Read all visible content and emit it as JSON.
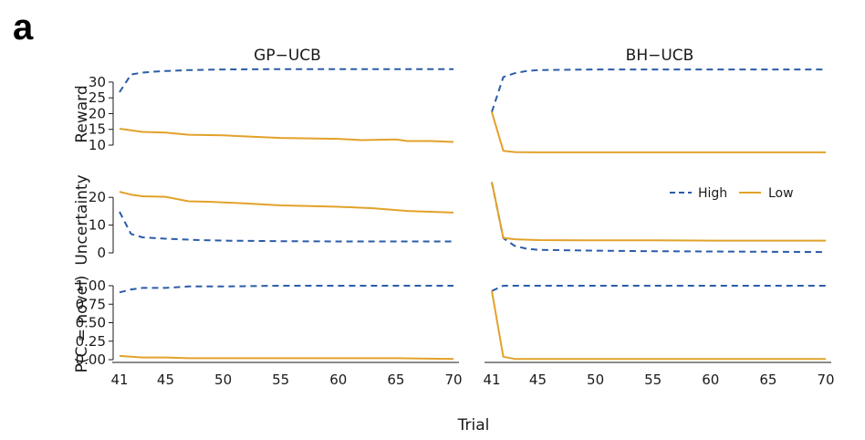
{
  "figure": {
    "panel_letter": "a",
    "xlabel": "Trial"
  },
  "colors": {
    "High": "#2b5ca8",
    "Low": "#e2a22b"
  },
  "chart_data": {
    "type": "line",
    "title": "",
    "x_ticks": [
      41,
      45,
      50,
      55,
      60,
      65,
      70
    ],
    "xlim": [
      41,
      70
    ],
    "columns": [
      "GP−UCB",
      "BH−UCB"
    ],
    "legend": {
      "entries": [
        "High",
        "Low"
      ],
      "placement": "right, in Uncertainty row of BH−UCB panel"
    },
    "rows": [
      {
        "key": "reward",
        "ylabel": "Reward",
        "ylim": [
          10,
          32
        ],
        "yticks": [
          10,
          15,
          20,
          25,
          30
        ],
        "ytick_labels": [
          "10",
          "15",
          "20",
          "25",
          "30"
        ],
        "panels": [
          {
            "column": "GP−UCB",
            "series": [
              {
                "name": "High",
                "style": "dashed",
                "points": [
                  [
                    41,
                    26.8
                  ],
                  [
                    42,
                    32.4
                  ],
                  [
                    43,
                    33.0
                  ],
                  [
                    44,
                    33.3
                  ],
                  [
                    45,
                    33.5
                  ],
                  [
                    47,
                    33.8
                  ],
                  [
                    50,
                    34.0
                  ],
                  [
                    55,
                    34.1
                  ],
                  [
                    60,
                    34.1
                  ],
                  [
                    65,
                    34.1
                  ],
                  [
                    70,
                    34.1
                  ]
                ]
              },
              {
                "name": "Low",
                "style": "solid",
                "points": [
                  [
                    41,
                    15.2
                  ],
                  [
                    43,
                    14.2
                  ],
                  [
                    45,
                    14.0
                  ],
                  [
                    47,
                    13.3
                  ],
                  [
                    50,
                    13.1
                  ],
                  [
                    55,
                    12.3
                  ],
                  [
                    60,
                    12.0
                  ],
                  [
                    62,
                    11.6
                  ],
                  [
                    65,
                    11.8
                  ],
                  [
                    66,
                    11.3
                  ],
                  [
                    68,
                    11.3
                  ],
                  [
                    70,
                    11.0
                  ]
                ]
              }
            ]
          },
          {
            "column": "BH−UCB",
            "series": [
              {
                "name": "High",
                "style": "dashed",
                "points": [
                  [
                    41,
                    20.5
                  ],
                  [
                    42,
                    31.6
                  ],
                  [
                    43,
                    32.8
                  ],
                  [
                    44,
                    33.5
                  ],
                  [
                    45,
                    33.8
                  ],
                  [
                    50,
                    34.0
                  ],
                  [
                    55,
                    34.0
                  ],
                  [
                    60,
                    34.0
                  ],
                  [
                    65,
                    34.0
                  ],
                  [
                    70,
                    34.0
                  ]
                ]
              },
              {
                "name": "Low",
                "style": "solid",
                "points": [
                  [
                    41,
                    20.5
                  ],
                  [
                    42,
                    8.2
                  ],
                  [
                    43,
                    7.8
                  ],
                  [
                    45,
                    7.7
                  ],
                  [
                    50,
                    7.7
                  ],
                  [
                    55,
                    7.7
                  ],
                  [
                    60,
                    7.7
                  ],
                  [
                    65,
                    7.7
                  ],
                  [
                    70,
                    7.7
                  ]
                ]
              }
            ]
          }
        ]
      },
      {
        "key": "uncertainty",
        "ylabel": "Uncertainty",
        "ylim": [
          0,
          25
        ],
        "yticks": [
          0,
          10,
          20
        ],
        "ytick_labels": [
          "0",
          "10",
          "20"
        ],
        "panels": [
          {
            "column": "GP−UCB",
            "series": [
              {
                "name": "High",
                "style": "dashed",
                "points": [
                  [
                    41,
                    14.8
                  ],
                  [
                    42,
                    6.8
                  ],
                  [
                    43,
                    5.6
                  ],
                  [
                    45,
                    5.1
                  ],
                  [
                    48,
                    4.6
                  ],
                  [
                    50,
                    4.4
                  ],
                  [
                    55,
                    4.2
                  ],
                  [
                    60,
                    4.1
                  ],
                  [
                    65,
                    4.1
                  ],
                  [
                    70,
                    4.1
                  ]
                ]
              },
              {
                "name": "Low",
                "style": "solid",
                "points": [
                  [
                    41,
                    22.0
                  ],
                  [
                    42,
                    21.0
                  ],
                  [
                    43,
                    20.4
                  ],
                  [
                    45,
                    20.2
                  ],
                  [
                    47,
                    18.6
                  ],
                  [
                    49,
                    18.4
                  ],
                  [
                    52,
                    17.8
                  ],
                  [
                    55,
                    17.1
                  ],
                  [
                    58,
                    16.8
                  ],
                  [
                    60,
                    16.6
                  ],
                  [
                    63,
                    16.1
                  ],
                  [
                    66,
                    15.1
                  ],
                  [
                    68,
                    14.8
                  ],
                  [
                    70,
                    14.5
                  ]
                ]
              }
            ]
          },
          {
            "column": "BH−UCB",
            "series": [
              {
                "name": "High",
                "style": "dashed",
                "points": [
                  [
                    41,
                    25.5
                  ],
                  [
                    42,
                    5.3
                  ],
                  [
                    43,
                    2.5
                  ],
                  [
                    44,
                    1.5
                  ],
                  [
                    45,
                    1.1
                  ],
                  [
                    50,
                    0.8
                  ],
                  [
                    55,
                    0.6
                  ],
                  [
                    60,
                    0.5
                  ],
                  [
                    65,
                    0.4
                  ],
                  [
                    70,
                    0.3
                  ]
                ]
              },
              {
                "name": "Low",
                "style": "solid",
                "points": [
                  [
                    41,
                    25.5
                  ],
                  [
                    42,
                    5.4
                  ],
                  [
                    43,
                    4.9
                  ],
                  [
                    45,
                    4.6
                  ],
                  [
                    50,
                    4.5
                  ],
                  [
                    55,
                    4.5
                  ],
                  [
                    60,
                    4.4
                  ],
                  [
                    65,
                    4.4
                  ],
                  [
                    70,
                    4.4
                  ]
                ]
              }
            ]
          }
        ]
      },
      {
        "key": "p_novel",
        "ylabel": "P(C = novel)",
        "ylim": [
          0,
          1
        ],
        "yticks": [
          0,
          0.25,
          0.5,
          0.75,
          1
        ],
        "ytick_labels": [
          "0.00",
          "0.25",
          "0.50",
          "0.75",
          "1.00"
        ],
        "panels": [
          {
            "column": "GP−UCB",
            "series": [
              {
                "name": "High",
                "style": "dashed",
                "points": [
                  [
                    41,
                    0.91
                  ],
                  [
                    42,
                    0.95
                  ],
                  [
                    43,
                    0.97
                  ],
                  [
                    45,
                    0.97
                  ],
                  [
                    47,
                    0.99
                  ],
                  [
                    50,
                    0.99
                  ],
                  [
                    55,
                    1.0
                  ],
                  [
                    60,
                    1.0
                  ],
                  [
                    65,
                    1.0
                  ],
                  [
                    70,
                    1.0
                  ]
                ]
              },
              {
                "name": "Low",
                "style": "solid",
                "points": [
                  [
                    41,
                    0.05
                  ],
                  [
                    42,
                    0.04
                  ],
                  [
                    43,
                    0.03
                  ],
                  [
                    45,
                    0.03
                  ],
                  [
                    47,
                    0.02
                  ],
                  [
                    50,
                    0.02
                  ],
                  [
                    55,
                    0.02
                  ],
                  [
                    60,
                    0.02
                  ],
                  [
                    65,
                    0.02
                  ],
                  [
                    70,
                    0.01
                  ]
                ]
              }
            ]
          },
          {
            "column": "BH−UCB",
            "series": [
              {
                "name": "High",
                "style": "dashed",
                "points": [
                  [
                    41,
                    0.93
                  ],
                  [
                    42,
                    1.0
                  ],
                  [
                    45,
                    1.0
                  ],
                  [
                    50,
                    1.0
                  ],
                  [
                    55,
                    1.0
                  ],
                  [
                    60,
                    1.0
                  ],
                  [
                    65,
                    1.0
                  ],
                  [
                    70,
                    1.0
                  ]
                ]
              },
              {
                "name": "Low",
                "style": "solid",
                "points": [
                  [
                    41,
                    0.93
                  ],
                  [
                    42,
                    0.04
                  ],
                  [
                    43,
                    0.01
                  ],
                  [
                    45,
                    0.01
                  ],
                  [
                    50,
                    0.01
                  ],
                  [
                    55,
                    0.01
                  ],
                  [
                    60,
                    0.01
                  ],
                  [
                    65,
                    0.01
                  ],
                  [
                    70,
                    0.01
                  ]
                ]
              }
            ]
          }
        ]
      }
    ]
  }
}
